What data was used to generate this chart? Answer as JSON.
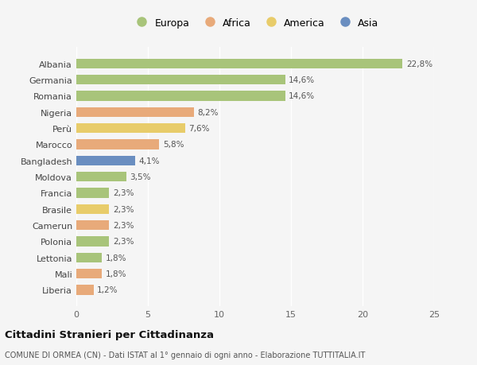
{
  "countries": [
    "Albania",
    "Germania",
    "Romania",
    "Nigeria",
    "Perù",
    "Marocco",
    "Bangladesh",
    "Moldova",
    "Francia",
    "Brasile",
    "Camerun",
    "Polonia",
    "Lettonia",
    "Mali",
    "Liberia"
  ],
  "values": [
    22.8,
    14.6,
    14.6,
    8.2,
    7.6,
    5.8,
    4.1,
    3.5,
    2.3,
    2.3,
    2.3,
    2.3,
    1.8,
    1.8,
    1.2
  ],
  "labels": [
    "22,8%",
    "14,6%",
    "14,6%",
    "8,2%",
    "7,6%",
    "5,8%",
    "4,1%",
    "3,5%",
    "2,3%",
    "2,3%",
    "2,3%",
    "2,3%",
    "1,8%",
    "1,8%",
    "1,2%"
  ],
  "continents": [
    "Europa",
    "Europa",
    "Europa",
    "Africa",
    "America",
    "Africa",
    "Asia",
    "Europa",
    "Europa",
    "America",
    "Africa",
    "Europa",
    "Europa",
    "Africa",
    "Africa"
  ],
  "continent_colors": {
    "Europa": "#a8c47a",
    "Africa": "#e8aa7a",
    "America": "#e8cc6a",
    "Asia": "#6a8ec0"
  },
  "legend_order": [
    "Europa",
    "Africa",
    "America",
    "Asia"
  ],
  "bg_color": "#f5f5f5",
  "title": "Cittadini Stranieri per Cittadinanza",
  "subtitle": "COMUNE DI ORMEA (CN) - Dati ISTAT al 1° gennaio di ogni anno - Elaborazione TUTTITALIA.IT",
  "xlim": [
    0,
    25
  ],
  "xticks": [
    0,
    5,
    10,
    15,
    20,
    25
  ]
}
